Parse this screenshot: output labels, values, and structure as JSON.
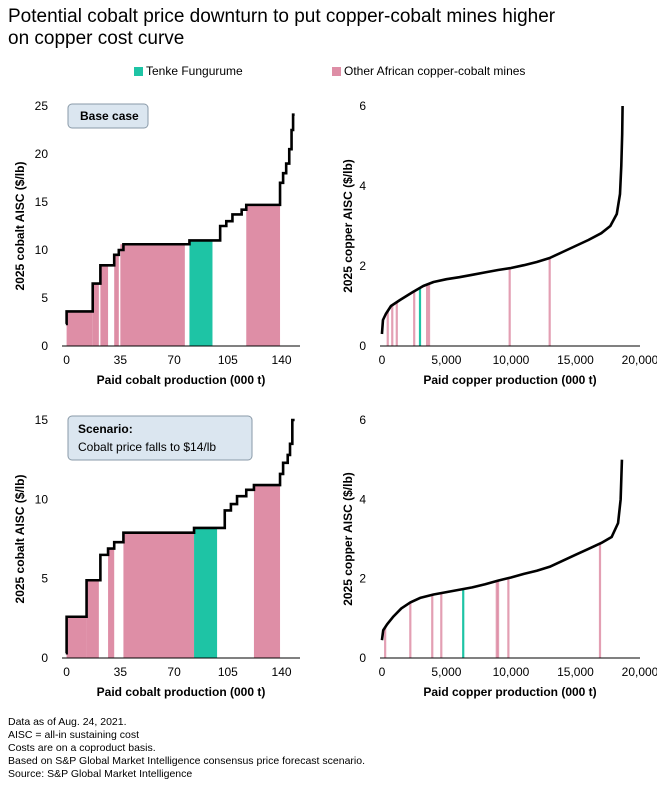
{
  "title_line1": "Potential cobalt price downturn to put copper-cobalt mines higher",
  "title_line2": "on copper cost curve",
  "colors": {
    "tenke": "#1ec4a5",
    "other": "#de8ea6",
    "line": "#000000",
    "box_fill": "#dbe6f0",
    "box_border": "#8a9aa8"
  },
  "legend": [
    {
      "label": "Tenke Fungurume",
      "color": "#1ec4a5"
    },
    {
      "label": "Other African copper-cobalt mines",
      "color": "#de8ea6"
    }
  ],
  "annotations": {
    "base_case": "Base case",
    "scenario_line1": "Scenario:",
    "scenario_line2": "Cobalt price falls to $14/lb"
  },
  "chart_data": [
    {
      "id": "cobalt-base",
      "type": "area",
      "title": "Base case",
      "xlabel": "Paid cobalt production (000 t)",
      "ylabel": "2025 cobalt AISC ($/lb)",
      "xticks": [
        "0",
        "35",
        "70",
        "105",
        "140"
      ],
      "xtick_values": [
        0,
        35,
        70,
        105,
        140
      ],
      "yticks": [
        "0",
        "5",
        "10",
        "15",
        "20",
        "25"
      ],
      "ytick_values": [
        0,
        5,
        10,
        15,
        20,
        25
      ],
      "xlim": [
        -3,
        152
      ],
      "ylim": [
        0,
        25
      ],
      "steps": [
        [
          -0.5,
          0,
          2.3
        ],
        [
          0,
          17,
          3.6
        ],
        [
          17,
          22,
          6.5
        ],
        [
          22,
          27,
          8.4
        ],
        [
          27,
          31,
          8.4
        ],
        [
          31,
          34,
          9.5
        ],
        [
          34,
          37,
          10.0
        ],
        [
          37,
          40,
          10.6
        ],
        [
          40,
          77,
          10.6
        ],
        [
          77,
          80,
          10.6
        ],
        [
          80,
          95,
          11.0
        ],
        [
          95,
          100,
          11.0
        ],
        [
          100,
          104,
          12.5
        ],
        [
          104,
          108,
          13.0
        ],
        [
          108,
          114,
          13.7
        ],
        [
          114,
          117,
          14.2
        ],
        [
          117,
          139,
          14.7
        ],
        [
          139,
          141,
          17.0
        ],
        [
          141,
          143,
          18.0
        ],
        [
          143,
          145,
          19.0
        ],
        [
          145,
          146.5,
          20.5
        ],
        [
          146.5,
          147.5,
          22.5
        ],
        [
          147.5,
          148.5,
          24.1
        ]
      ],
      "filled": [
        {
          "x": [
            0,
            17
          ],
          "y": 3.6,
          "mine": "other"
        },
        {
          "x": [
            17,
            21
          ],
          "y": 6.5,
          "mine": "other"
        },
        {
          "x": [
            22,
            27
          ],
          "y": 8.4,
          "mine": "other"
        },
        {
          "x": [
            31,
            34
          ],
          "y": 9.5,
          "mine": "other"
        },
        {
          "x": [
            35,
            77
          ],
          "y": 10.6,
          "mine": "other"
        },
        {
          "x": [
            80,
            95
          ],
          "y": 11.0,
          "mine": "tenke"
        },
        {
          "x": [
            117,
            139
          ],
          "y": 14.7,
          "mine": "other"
        }
      ]
    },
    {
      "id": "copper-base",
      "type": "line",
      "xlabel": "Paid copper production (000 t)",
      "ylabel": "2025 copper AISC ($/lb)",
      "xticks": [
        "0",
        "5,000",
        "10,000",
        "15,000",
        "20,000"
      ],
      "xtick_values": [
        0,
        5000,
        10000,
        15000,
        20000
      ],
      "yticks": [
        "0",
        "2",
        "4",
        "6"
      ],
      "ytick_values": [
        0,
        2,
        4,
        6
      ],
      "xlim": [
        -150,
        20000
      ],
      "ylim": [
        0,
        6
      ],
      "curve": [
        [
          0,
          0.3
        ],
        [
          80,
          0.65
        ],
        [
          300,
          0.8
        ],
        [
          700,
          1.0
        ],
        [
          1400,
          1.15
        ],
        [
          2400,
          1.35
        ],
        [
          3200,
          1.5
        ],
        [
          4000,
          1.6
        ],
        [
          5000,
          1.67
        ],
        [
          6000,
          1.72
        ],
        [
          7000,
          1.78
        ],
        [
          8000,
          1.84
        ],
        [
          9000,
          1.9
        ],
        [
          10000,
          1.95
        ],
        [
          11000,
          2.02
        ],
        [
          12000,
          2.1
        ],
        [
          13000,
          2.2
        ],
        [
          14000,
          2.35
        ],
        [
          15000,
          2.5
        ],
        [
          16000,
          2.65
        ],
        [
          17000,
          2.82
        ],
        [
          17700,
          3.0
        ],
        [
          18200,
          3.3
        ],
        [
          18450,
          3.8
        ],
        [
          18550,
          4.5
        ],
        [
          18620,
          5.3
        ],
        [
          18650,
          6.0
        ]
      ],
      "bars": [
        {
          "x": 450,
          "mine": "other"
        },
        {
          "x": 800,
          "mine": "other"
        },
        {
          "x": 1150,
          "mine": "other"
        },
        {
          "x": 2500,
          "mine": "other"
        },
        {
          "x": 2950,
          "mine": "tenke"
        },
        {
          "x": 3500,
          "mine": "other"
        },
        {
          "x": 3650,
          "mine": "other"
        },
        {
          "x": 9900,
          "mine": "other"
        },
        {
          "x": 13000,
          "mine": "other"
        }
      ]
    },
    {
      "id": "cobalt-scenario",
      "type": "area",
      "title": "Scenario: Cobalt price falls to $14/lb",
      "xlabel": "Paid cobalt production (000 t)",
      "ylabel": "2025 cobalt AISC ($/lb)",
      "xticks": [
        "0",
        "35",
        "70",
        "105",
        "140"
      ],
      "xtick_values": [
        0,
        35,
        70,
        105,
        140
      ],
      "yticks": [
        "0",
        "5",
        "10",
        "15"
      ],
      "ytick_values": [
        0,
        5,
        10,
        15
      ],
      "xlim": [
        -3,
        152
      ],
      "ylim": [
        0,
        15
      ],
      "steps": [
        [
          -0.5,
          0,
          0.3
        ],
        [
          0,
          13,
          2.6
        ],
        [
          13,
          22,
          4.9
        ],
        [
          22,
          27,
          6.5
        ],
        [
          27,
          31,
          6.9
        ],
        [
          31,
          37,
          7.3
        ],
        [
          37,
          42,
          7.9
        ],
        [
          42,
          83,
          7.9
        ],
        [
          83,
          98,
          8.2
        ],
        [
          98,
          103,
          8.2
        ],
        [
          103,
          107,
          9.3
        ],
        [
          107,
          111,
          9.7
        ],
        [
          111,
          117,
          10.2
        ],
        [
          117,
          122,
          10.6
        ],
        [
          122,
          139,
          10.9
        ],
        [
          139,
          141,
          11.6
        ],
        [
          141,
          144,
          12.3
        ],
        [
          144,
          145.5,
          12.8
        ],
        [
          145.5,
          147,
          13.5
        ],
        [
          147,
          148.5,
          15.0
        ]
      ],
      "filled": [
        {
          "x": [
            0,
            13
          ],
          "y": 2.6,
          "mine": "other"
        },
        {
          "x": [
            13,
            21
          ],
          "y": 4.9,
          "mine": "other"
        },
        {
          "x": [
            27,
            31
          ],
          "y": 6.9,
          "mine": "other"
        },
        {
          "x": [
            37,
            83
          ],
          "y": 7.9,
          "mine": "other"
        },
        {
          "x": [
            83,
            98
          ],
          "y": 8.2,
          "mine": "tenke"
        },
        {
          "x": [
            122,
            139
          ],
          "y": 10.9,
          "mine": "other"
        }
      ]
    },
    {
      "id": "copper-scenario",
      "type": "line",
      "xlabel": "Paid copper production (000 t)",
      "ylabel": "2025 copper AISC ($/lb)",
      "xticks": [
        "0",
        "5,000",
        "10,000",
        "15,000",
        "20,000"
      ],
      "xtick_values": [
        0,
        5000,
        10000,
        15000,
        20000
      ],
      "yticks": [
        "0",
        "2",
        "4",
        "6"
      ],
      "ytick_values": [
        0,
        2,
        4,
        6
      ],
      "xlim": [
        -150,
        20000
      ],
      "ylim": [
        0,
        6
      ],
      "curve": [
        [
          0,
          0.45
        ],
        [
          100,
          0.7
        ],
        [
          400,
          0.85
        ],
        [
          900,
          1.05
        ],
        [
          1500,
          1.25
        ],
        [
          2200,
          1.4
        ],
        [
          3000,
          1.52
        ],
        [
          4000,
          1.6
        ],
        [
          5000,
          1.66
        ],
        [
          6000,
          1.72
        ],
        [
          7000,
          1.78
        ],
        [
          8000,
          1.86
        ],
        [
          9000,
          1.95
        ],
        [
          10000,
          2.03
        ],
        [
          11000,
          2.12
        ],
        [
          12000,
          2.2
        ],
        [
          13000,
          2.3
        ],
        [
          14000,
          2.45
        ],
        [
          15000,
          2.6
        ],
        [
          16000,
          2.75
        ],
        [
          17000,
          2.9
        ],
        [
          17800,
          3.05
        ],
        [
          18300,
          3.4
        ],
        [
          18500,
          4.0
        ],
        [
          18560,
          4.6
        ],
        [
          18600,
          5.0
        ]
      ],
      "bars": [
        {
          "x": 250,
          "mine": "other"
        },
        {
          "x": 2200,
          "mine": "other"
        },
        {
          "x": 3900,
          "mine": "other"
        },
        {
          "x": 4600,
          "mine": "other"
        },
        {
          "x": 6300,
          "mine": "tenke"
        },
        {
          "x": 8900,
          "mine": "other"
        },
        {
          "x": 9000,
          "mine": "other"
        },
        {
          "x": 9800,
          "mine": "other"
        },
        {
          "x": 16900,
          "mine": "other"
        }
      ]
    }
  ],
  "footer": [
    "Data as of Aug. 24, 2021.",
    "AISC = all-in sustaining cost",
    "Costs are on a coproduct basis.",
    "Based on S&P Global Market Intelligence consensus price forecast scenario.",
    "Source: S&P Global Market Intelligence"
  ]
}
